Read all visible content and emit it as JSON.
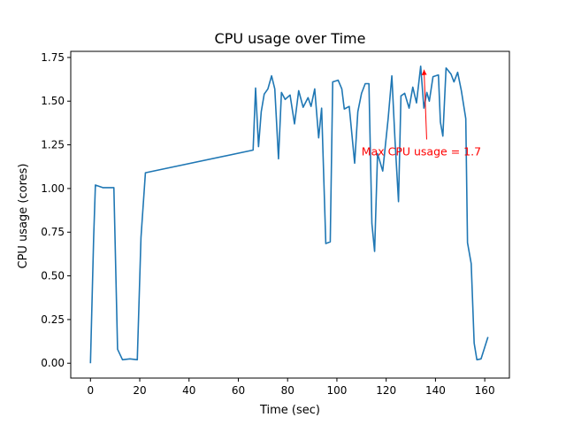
{
  "chart_data": {
    "type": "line",
    "title": "CPU usage over Time",
    "xlabel": "Time (sec)",
    "ylabel": "CPU usage (cores)",
    "xlim": [
      -8,
      170
    ],
    "ylim": [
      -0.085,
      1.785
    ],
    "xticks": [
      0,
      20,
      40,
      60,
      80,
      100,
      120,
      140,
      160
    ],
    "xtick_labels": [
      "0",
      "20",
      "40",
      "60",
      "80",
      "100",
      "120",
      "140",
      "160"
    ],
    "yticks": [
      0.0,
      0.25,
      0.5,
      0.75,
      1.0,
      1.25,
      1.5,
      1.75
    ],
    "ytick_labels": [
      "0.00",
      "0.25",
      "0.50",
      "0.75",
      "1.00",
      "1.25",
      "1.50",
      "1.75"
    ],
    "grid": false,
    "series_color": "#1f77b4",
    "series": [
      {
        "points": [
          [
            0,
            0.0
          ],
          [
            1.3,
            0.72
          ],
          [
            2,
            1.02
          ],
          [
            5,
            1.005
          ],
          [
            9.5,
            1.005
          ],
          [
            11,
            0.08
          ],
          [
            13,
            0.02
          ],
          [
            16,
            0.025
          ],
          [
            19,
            0.02
          ],
          [
            20.5,
            0.72
          ],
          [
            22.3,
            1.09
          ],
          [
            66,
            1.22
          ],
          [
            67,
            1.575
          ],
          [
            68.2,
            1.24
          ],
          [
            69.3,
            1.44
          ],
          [
            70.5,
            1.54
          ],
          [
            72,
            1.57
          ],
          [
            73.5,
            1.645
          ],
          [
            74.8,
            1.57
          ],
          [
            76.3,
            1.17
          ],
          [
            77.5,
            1.55
          ],
          [
            79,
            1.51
          ],
          [
            81,
            1.535
          ],
          [
            82.8,
            1.37
          ],
          [
            84.5,
            1.56
          ],
          [
            86.3,
            1.465
          ],
          [
            88.3,
            1.52
          ],
          [
            89.5,
            1.47
          ],
          [
            91,
            1.57
          ],
          [
            92.6,
            1.29
          ],
          [
            93.8,
            1.46
          ],
          [
            95.5,
            0.685
          ],
          [
            97.3,
            0.695
          ],
          [
            98.3,
            1.61
          ],
          [
            100.5,
            1.62
          ],
          [
            102,
            1.57
          ],
          [
            103,
            1.455
          ],
          [
            105,
            1.47
          ],
          [
            107.2,
            1.145
          ],
          [
            108.5,
            1.44
          ],
          [
            110,
            1.545
          ],
          [
            111.5,
            1.6
          ],
          [
            113,
            1.6
          ],
          [
            114.2,
            0.8
          ],
          [
            115.3,
            0.64
          ],
          [
            116.5,
            1.2
          ],
          [
            118.6,
            1.1
          ],
          [
            120.8,
            1.4
          ],
          [
            122.3,
            1.645
          ],
          [
            123.6,
            1.27
          ],
          [
            125,
            0.925
          ],
          [
            126,
            1.53
          ],
          [
            127.5,
            1.545
          ],
          [
            129.3,
            1.46
          ],
          [
            130.8,
            1.58
          ],
          [
            132.3,
            1.49
          ],
          [
            134,
            1.7
          ],
          [
            135.3,
            1.46
          ],
          [
            136.5,
            1.55
          ],
          [
            137.5,
            1.5
          ],
          [
            139,
            1.64
          ],
          [
            141.2,
            1.65
          ],
          [
            142,
            1.38
          ],
          [
            143,
            1.3
          ],
          [
            144.3,
            1.69
          ],
          [
            146.3,
            1.655
          ],
          [
            147.5,
            1.61
          ],
          [
            149,
            1.665
          ],
          [
            150.5,
            1.56
          ],
          [
            152.3,
            1.4
          ],
          [
            153,
            0.69
          ],
          [
            154.5,
            0.57
          ],
          [
            155.7,
            0.115
          ],
          [
            156.8,
            0.02
          ],
          [
            158.5,
            0.025
          ],
          [
            161.3,
            0.15
          ]
        ]
      }
    ],
    "annotation": {
      "text": "Max CPU usage = 1.7",
      "color": "#ff0000",
      "point": [
        135,
        1.7
      ],
      "text_at": [
        110,
        1.22
      ]
    }
  }
}
